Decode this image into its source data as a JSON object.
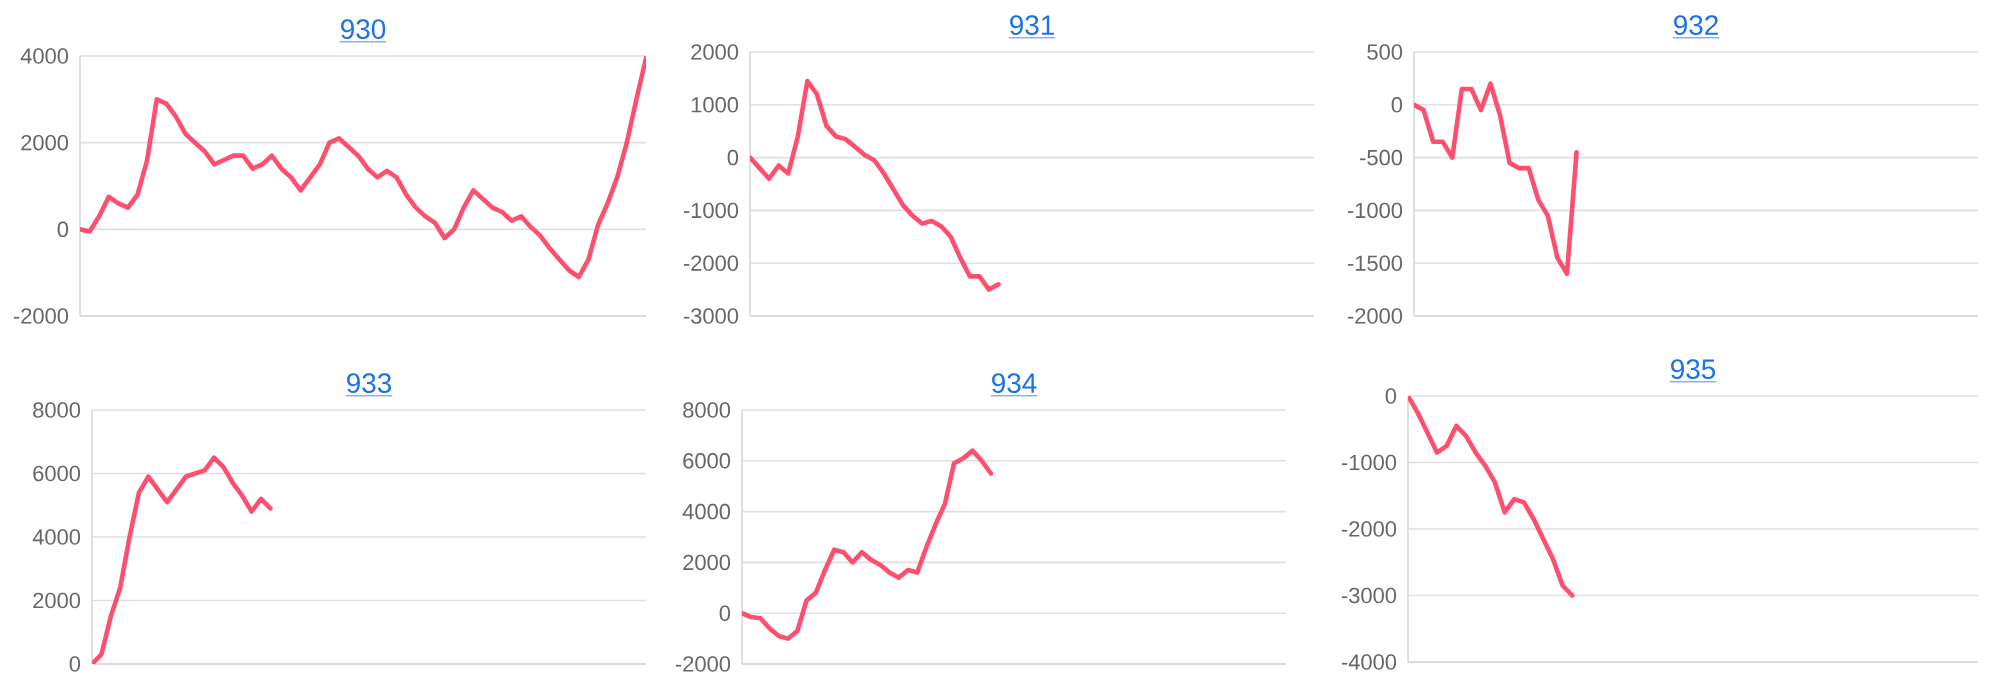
{
  "chart_data": [
    {
      "type": "line",
      "title": "930",
      "categories": [
        null,
        null,
        null,
        null,
        null,
        null,
        null,
        null,
        null,
        null,
        null,
        null,
        null,
        null,
        null,
        null,
        null,
        null,
        null,
        null,
        null,
        null,
        null,
        null,
        null,
        null,
        null,
        null,
        null,
        null,
        null,
        null,
        null,
        null,
        null,
        null,
        null,
        null,
        null,
        null,
        null,
        null,
        null,
        null,
        null,
        null,
        null,
        null,
        null,
        null,
        null,
        null,
        null,
        null,
        null,
        null,
        null,
        null,
        null,
        null
      ],
      "values": [
        0,
        -50,
        300,
        750,
        600,
        500,
        800,
        1600,
        3000,
        2900,
        2600,
        2200,
        2000,
        1800,
        1500,
        1600,
        1700,
        1700,
        1400,
        1500,
        1700,
        1400,
        1200,
        900,
        1200,
        1500,
        2000,
        2100,
        1900,
        1700,
        1400,
        1200,
        1350,
        1200,
        800,
        500,
        300,
        150,
        -200,
        0,
        500,
        900,
        700,
        500,
        400,
        200,
        300,
        50,
        -150,
        -450,
        -700,
        -950,
        -1100,
        -700,
        100,
        600,
        1200,
        2000,
        3000,
        3950
      ],
      "color": "#ff4f6e",
      "ylim": [
        -2000,
        4000
      ],
      "yticks": [
        -2000,
        0,
        2000,
        4000
      ],
      "grid": "y",
      "tick_labels": "y"
    },
    {
      "type": "line",
      "title": "931",
      "categories": [
        null,
        null,
        null,
        null,
        null,
        null,
        null,
        null,
        null,
        null,
        null,
        null,
        null,
        null,
        null,
        null,
        null,
        null,
        null,
        null,
        null,
        null,
        null,
        null,
        null,
        null,
        null,
        null,
        null,
        null,
        null,
        null,
        null,
        null,
        null,
        null,
        null,
        null,
        null,
        null,
        null,
        null,
        null,
        null,
        null,
        null,
        null,
        null,
        null,
        null,
        null,
        null,
        null,
        null,
        null,
        null,
        null,
        null,
        null,
        null
      ],
      "values": [
        0,
        -200,
        -400,
        -150,
        -300,
        400,
        1450,
        1200,
        600,
        400,
        350,
        200,
        50,
        -50,
        -300,
        -600,
        -900,
        -1100,
        -1250,
        -1200,
        -1300,
        -1500,
        -1900,
        -2250,
        -2250,
        -2500,
        -2400,
        null,
        null,
        null,
        null,
        null,
        null,
        null,
        null,
        null,
        null,
        null,
        null,
        null,
        null,
        null,
        null,
        null,
        null,
        null,
        null,
        null,
        null,
        null,
        null,
        null,
        null,
        null,
        null,
        null,
        null,
        null,
        null,
        null
      ],
      "color": "#ff4f6e",
      "ylim": [
        -3000,
        2000
      ],
      "yticks": [
        -3000,
        -2000,
        -1000,
        0,
        1000,
        2000
      ],
      "grid": "y",
      "tick_labels": "y"
    },
    {
      "type": "line",
      "title": "932",
      "categories": [
        null,
        null,
        null,
        null,
        null,
        null,
        null,
        null,
        null,
        null,
        null,
        null,
        null,
        null,
        null,
        null,
        null,
        null,
        null,
        null,
        null,
        null,
        null,
        null,
        null,
        null,
        null,
        null,
        null,
        null,
        null,
        null,
        null,
        null,
        null,
        null,
        null,
        null,
        null,
        null,
        null,
        null,
        null,
        null,
        null,
        null,
        null,
        null,
        null,
        null,
        null,
        null,
        null,
        null,
        null,
        null,
        null,
        null,
        null,
        null
      ],
      "values": [
        0,
        -50,
        -350,
        -350,
        -500,
        150,
        150,
        -50,
        200,
        -100,
        -550,
        -600,
        -600,
        -900,
        -1050,
        -1450,
        -1600,
        -450,
        null,
        null,
        null,
        null,
        null,
        null,
        null,
        null,
        null,
        null,
        null,
        null,
        null,
        null,
        null,
        null,
        null,
        null,
        null,
        null,
        null,
        null,
        null,
        null,
        null,
        null,
        null,
        null,
        null,
        null,
        null,
        null,
        null,
        null,
        null,
        null,
        null,
        null,
        null,
        null,
        null,
        null
      ],
      "color": "#ff4f6e",
      "ylim": [
        -2000,
        500
      ],
      "yticks": [
        -2000,
        -1500,
        -1000,
        -500,
        0,
        500
      ],
      "grid": "y",
      "tick_labels": "y"
    },
    {
      "type": "line",
      "title": "933",
      "categories": [
        null,
        null,
        null,
        null,
        null,
        null,
        null,
        null,
        null,
        null,
        null,
        null,
        null,
        null,
        null,
        null,
        null,
        null,
        null,
        null,
        null,
        null,
        null,
        null,
        null,
        null,
        null,
        null,
        null,
        null,
        null,
        null,
        null,
        null,
        null,
        null,
        null,
        null,
        null,
        null,
        null,
        null,
        null,
        null,
        null,
        null,
        null,
        null,
        null,
        null,
        null,
        null,
        null,
        null,
        null,
        null,
        null,
        null,
        null,
        null
      ],
      "values": [
        0,
        300,
        1500,
        2400,
        4000,
        5400,
        5900,
        5500,
        5100,
        5500,
        5900,
        6000,
        6100,
        6500,
        6200,
        5700,
        5300,
        4800,
        5200,
        4900,
        null,
        null,
        null,
        null,
        null,
        null,
        null,
        null,
        null,
        null,
        null,
        null,
        null,
        null,
        null,
        null,
        null,
        null,
        null,
        null,
        null,
        null,
        null,
        null,
        null,
        null,
        null,
        null,
        null,
        null,
        null,
        null,
        null,
        null,
        null,
        null,
        null,
        null,
        null,
        null
      ],
      "color": "#ff4f6e",
      "ylim": [
        0,
        8000
      ],
      "yticks": [
        0,
        2000,
        4000,
        6000,
        8000
      ],
      "grid": "y",
      "tick_labels": "y"
    },
    {
      "type": "line",
      "title": "934",
      "categories": [
        null,
        null,
        null,
        null,
        null,
        null,
        null,
        null,
        null,
        null,
        null,
        null,
        null,
        null,
        null,
        null,
        null,
        null,
        null,
        null,
        null,
        null,
        null,
        null,
        null,
        null,
        null,
        null,
        null,
        null,
        null,
        null,
        null,
        null,
        null,
        null,
        null,
        null,
        null,
        null,
        null,
        null,
        null,
        null,
        null,
        null,
        null,
        null,
        null,
        null,
        null,
        null,
        null,
        null,
        null,
        null,
        null,
        null,
        null,
        null
      ],
      "values": [
        0,
        -150,
        -200,
        -600,
        -900,
        -1000,
        -700,
        500,
        800,
        1700,
        2500,
        2400,
        2000,
        2400,
        2100,
        1900,
        1600,
        1400,
        1700,
        1600,
        2600,
        3500,
        4300,
        5900,
        6100,
        6400,
        6000,
        5500,
        null,
        null,
        null,
        null,
        null,
        null,
        null,
        null,
        null,
        null,
        null,
        null,
        null,
        null,
        null,
        null,
        null,
        null,
        null,
        null,
        null,
        null,
        null,
        null,
        null,
        null,
        null,
        null,
        null,
        null,
        null,
        null
      ],
      "color": "#ff4f6e",
      "ylim": [
        -2000,
        8000
      ],
      "yticks": [
        -2000,
        0,
        2000,
        4000,
        6000,
        8000
      ],
      "grid": "y",
      "tick_labels": "y"
    },
    {
      "type": "line",
      "title": "935",
      "categories": [
        null,
        null,
        null,
        null,
        null,
        null,
        null,
        null,
        null,
        null,
        null,
        null,
        null,
        null,
        null,
        null,
        null,
        null,
        null,
        null,
        null,
        null,
        null,
        null,
        null,
        null,
        null,
        null,
        null,
        null,
        null,
        null,
        null,
        null,
        null,
        null,
        null,
        null,
        null,
        null,
        null,
        null,
        null,
        null,
        null,
        null,
        null,
        null,
        null,
        null,
        null,
        null,
        null,
        null,
        null,
        null,
        null,
        null,
        null,
        null
      ],
      "values": [
        0,
        -250,
        -550,
        -850,
        -750,
        -450,
        -600,
        -850,
        -1050,
        -1300,
        -1750,
        -1550,
        -1600,
        -1850,
        -2150,
        -2450,
        -2850,
        -3000,
        null,
        null,
        null,
        null,
        null,
        null,
        null,
        null,
        null,
        null,
        null,
        null,
        null,
        null,
        null,
        null,
        null,
        null,
        null,
        null,
        null,
        null,
        null,
        null,
        null,
        null,
        null,
        null,
        null,
        null,
        null,
        null,
        null,
        null,
        null,
        null,
        null,
        null,
        null,
        null,
        null,
        null
      ],
      "color": "#ff4f6e",
      "ylim": [
        -4000,
        0
      ],
      "yticks": [
        -4000,
        -3000,
        -2000,
        -1000,
        0
      ],
      "grid": "y",
      "tick_labels": "y"
    }
  ]
}
